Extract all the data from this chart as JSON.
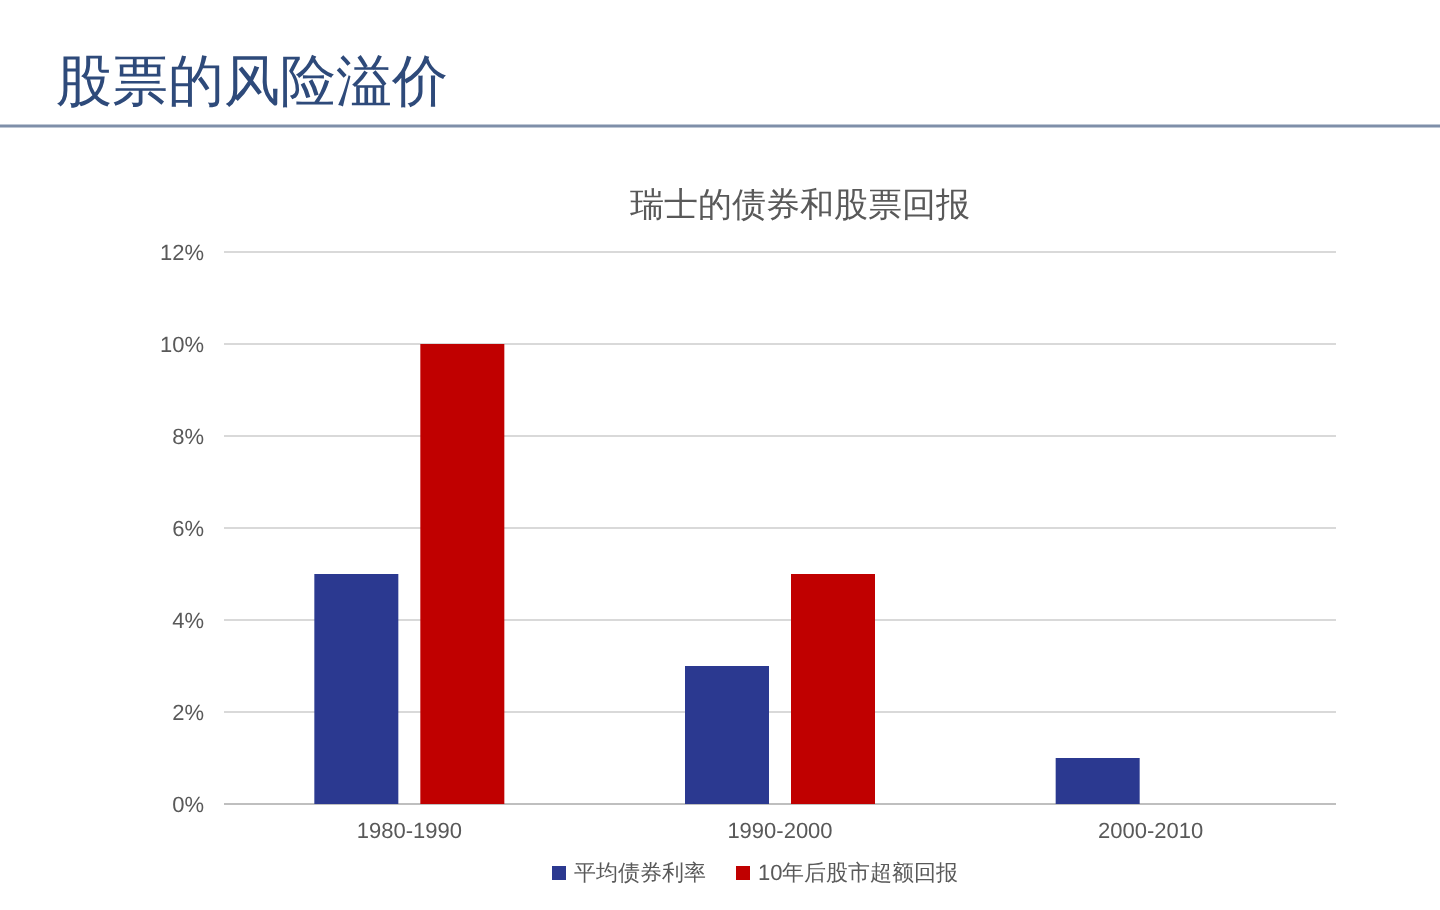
{
  "chart_data": {
    "type": "bar",
    "title": "股票的风险溢价",
    "subtitle": "瑞士的债券和股票回报",
    "categories": [
      "1980-1990",
      "1990-2000",
      "2000-2010"
    ],
    "series": [
      {
        "name": "平均债券利率",
        "color": "#2b3990",
        "values": [
          5,
          3,
          1
        ]
      },
      {
        "name": "10年后股市超额回报",
        "color": "#c00000",
        "values": [
          10,
          5,
          null
        ]
      }
    ],
    "ylim": [
      0,
      12
    ],
    "yticks": [
      {
        "value": 0,
        "label": "0%"
      },
      {
        "value": 2,
        "label": "2%"
      },
      {
        "value": 4,
        "label": "4%"
      },
      {
        "value": 6,
        "label": "6%"
      },
      {
        "value": 8,
        "label": "8%"
      },
      {
        "value": 10,
        "label": "10%"
      },
      {
        "value": 12,
        "label": "12%"
      }
    ],
    "grid": "y",
    "legend": "bottom"
  }
}
